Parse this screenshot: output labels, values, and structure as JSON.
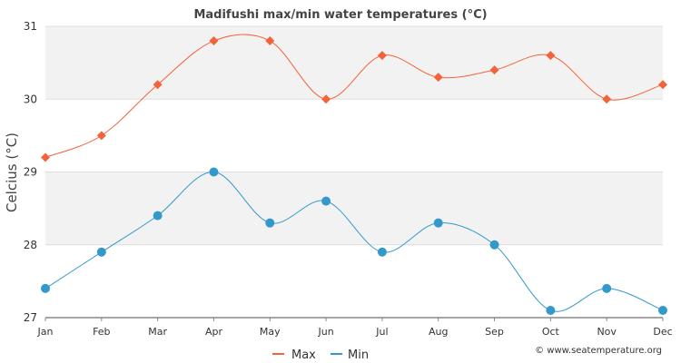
{
  "chart_data": {
    "type": "line",
    "title": "Madifushi max/min water temperatures (°C)",
    "xlabel": "",
    "ylabel": "Celcius (°C)",
    "categories": [
      "Jan",
      "Feb",
      "Mar",
      "Apr",
      "May",
      "Jun",
      "Jul",
      "Aug",
      "Sep",
      "Oct",
      "Nov",
      "Dec"
    ],
    "ylim": [
      27,
      31
    ],
    "yticks": [
      "27",
      "28",
      "29",
      "30",
      "31"
    ],
    "grid": true,
    "legend": "bottom-center",
    "series": [
      {
        "name": "Max",
        "color": "#f4623a",
        "marker": "diamond",
        "values": [
          29.2,
          29.5,
          30.2,
          30.8,
          30.8,
          30.0,
          30.6,
          30.3,
          30.4,
          30.6,
          30.0,
          30.2
        ]
      },
      {
        "name": "Min",
        "color": "#3399cc",
        "marker": "circle",
        "values": [
          27.4,
          27.9,
          28.4,
          29.0,
          28.3,
          28.6,
          27.9,
          28.3,
          28.0,
          27.1,
          27.4,
          27.1
        ]
      }
    ],
    "credit": "© www.seatemperature.org"
  }
}
